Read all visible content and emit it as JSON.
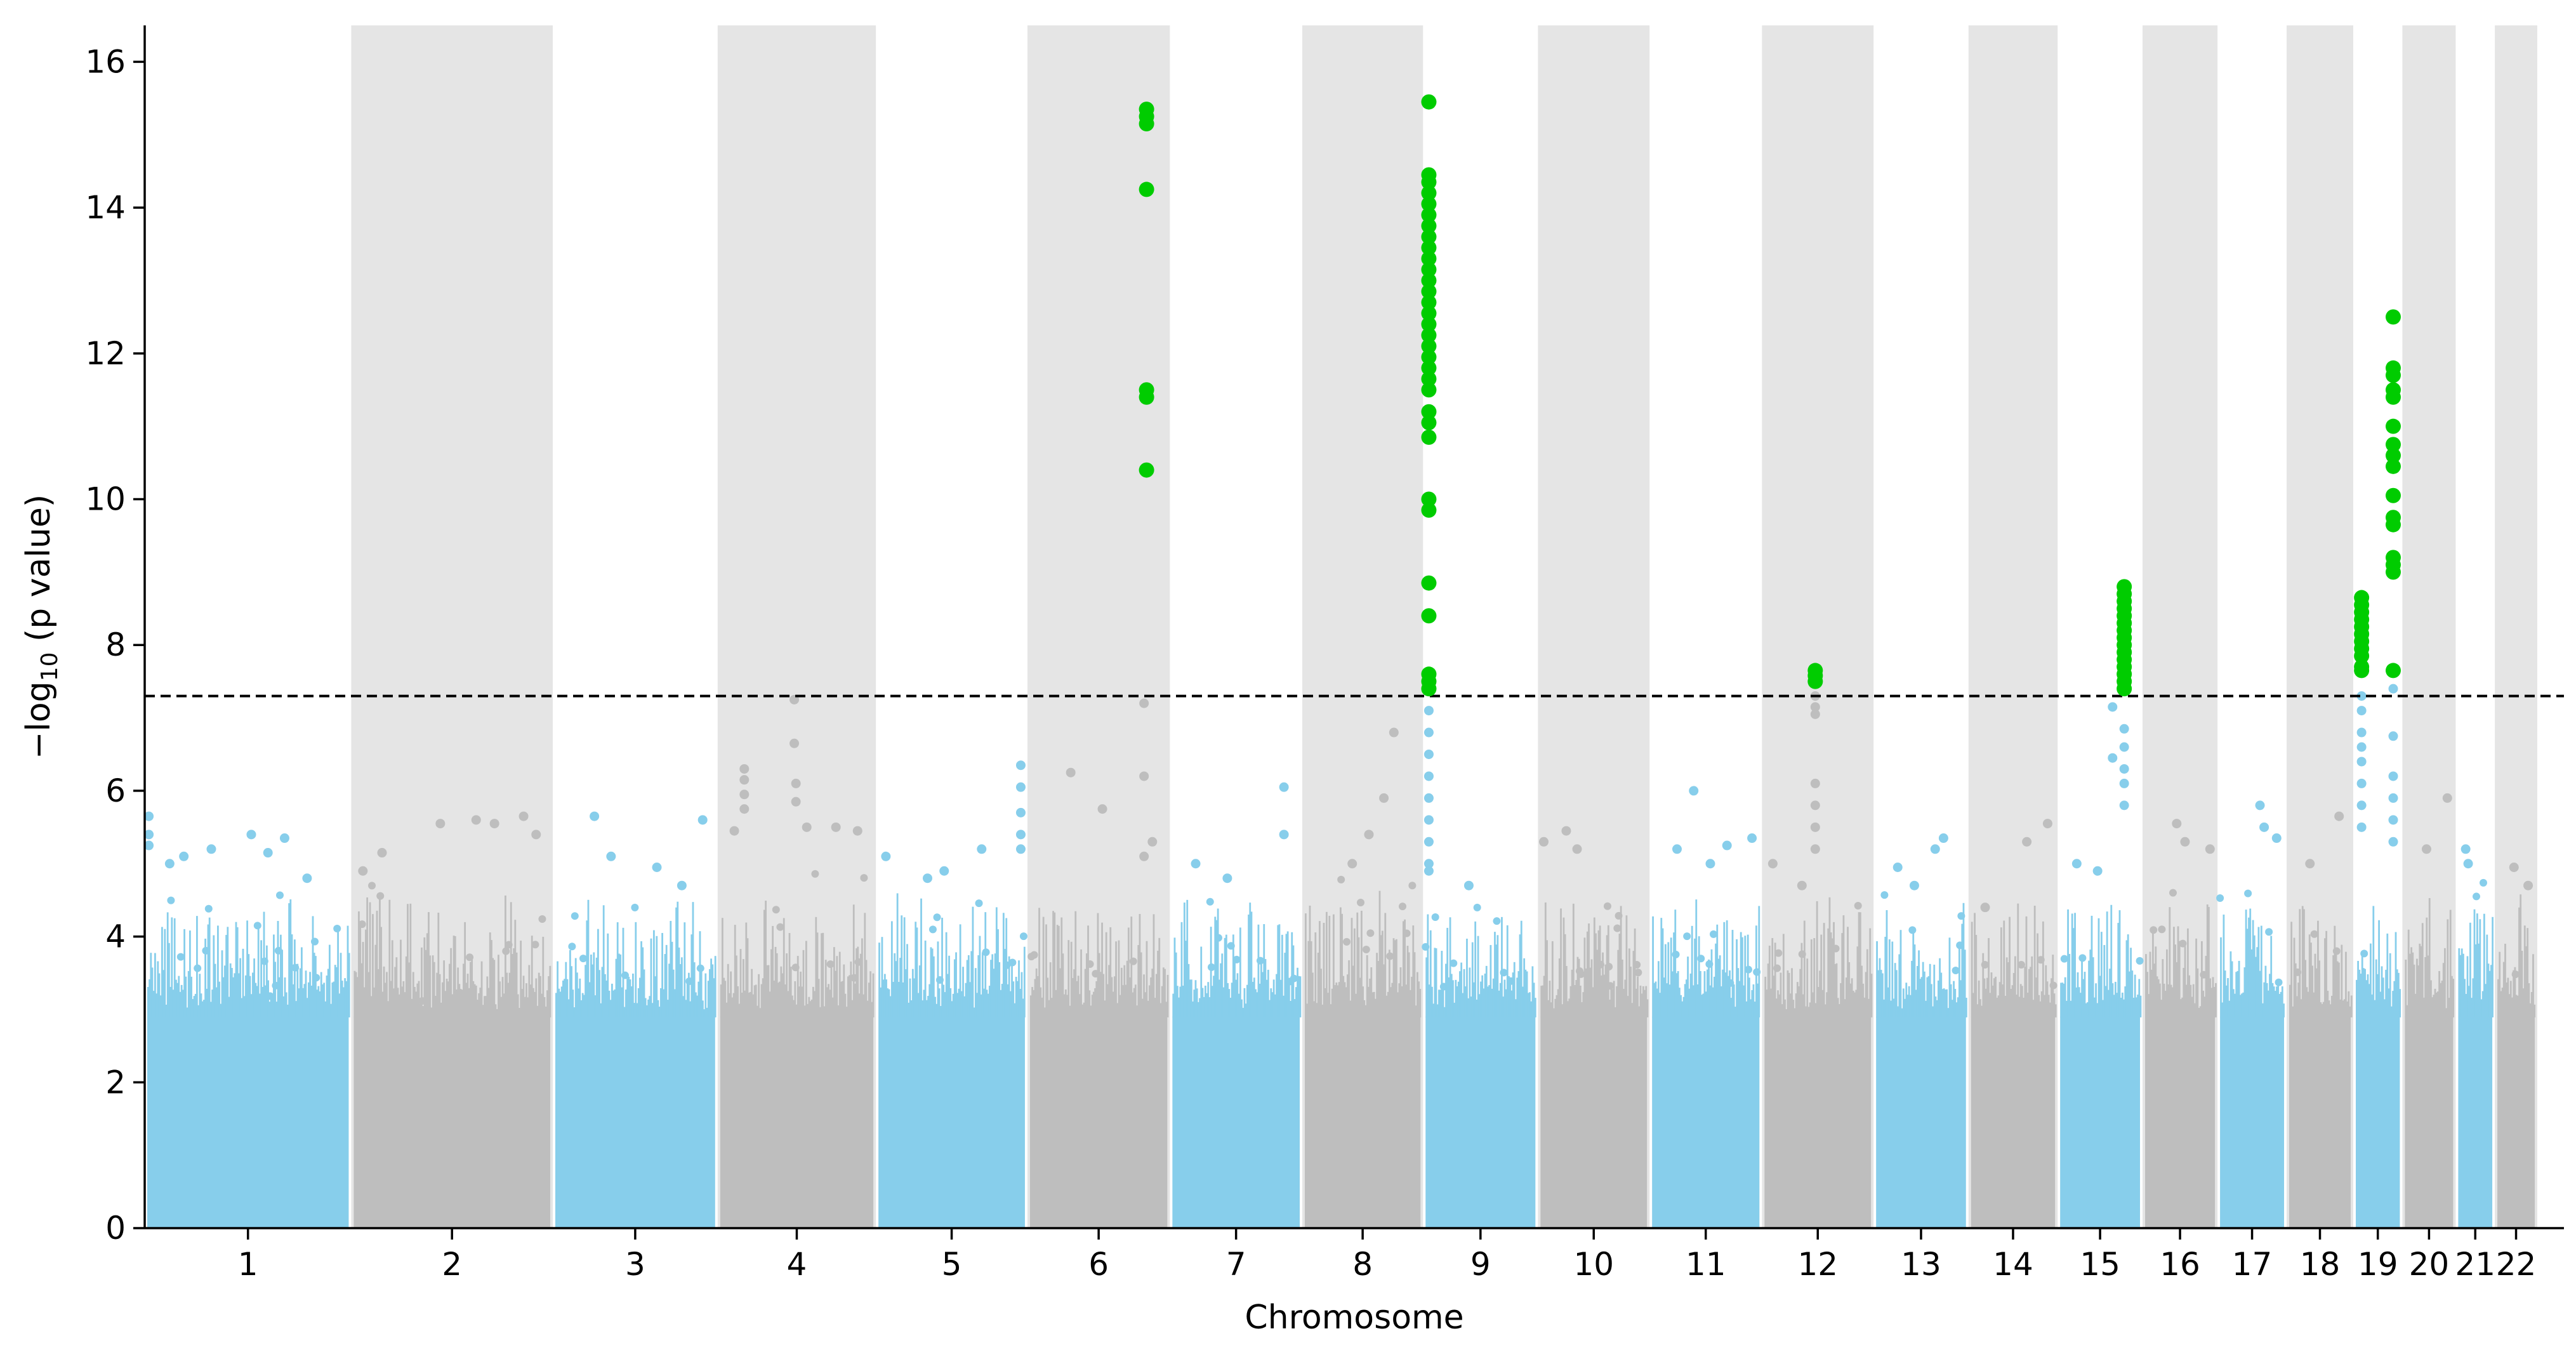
{
  "chart_data": {
    "type": "scatter",
    "title": "",
    "xlabel": "Chromosome",
    "ylabel": "−log",
    "ylabel_sub": "10",
    "ylabel_suffix": " (p value)",
    "ylim": [
      0,
      16.5
    ],
    "yticks": [
      0,
      2,
      4,
      6,
      8,
      10,
      12,
      14,
      16
    ],
    "grid": false,
    "legend": "none",
    "significance_threshold": 7.3,
    "colors": {
      "odd": "#87ceeb",
      "even": "#bebebe",
      "band": "#e5e5e5",
      "significant": "#00cc00",
      "threshold": "#000000"
    },
    "x_domain": [
      0,
      2905
    ],
    "chromosomes": [
      {
        "label": "1",
        "start": 0,
        "end": 248
      },
      {
        "label": "2",
        "start": 248,
        "end": 490
      },
      {
        "label": "3",
        "start": 490,
        "end": 688
      },
      {
        "label": "4",
        "start": 688,
        "end": 878
      },
      {
        "label": "5",
        "start": 878,
        "end": 1060
      },
      {
        "label": "6",
        "start": 1060,
        "end": 1231
      },
      {
        "label": "7",
        "start": 1231,
        "end": 1390
      },
      {
        "label": "8",
        "start": 1390,
        "end": 1535
      },
      {
        "label": "9",
        "start": 1535,
        "end": 1673
      },
      {
        "label": "10",
        "start": 1673,
        "end": 1807
      },
      {
        "label": "11",
        "start": 1807,
        "end": 1942
      },
      {
        "label": "12",
        "start": 1942,
        "end": 2076
      },
      {
        "label": "13",
        "start": 2076,
        "end": 2190
      },
      {
        "label": "14",
        "start": 2190,
        "end": 2297
      },
      {
        "label": "15",
        "start": 2297,
        "end": 2399
      },
      {
        "label": "16",
        "start": 2399,
        "end": 2489
      },
      {
        "label": "17",
        "start": 2489,
        "end": 2572
      },
      {
        "label": "18",
        "start": 2572,
        "end": 2652
      },
      {
        "label": "19",
        "start": 2652,
        "end": 2711
      },
      {
        "label": "20",
        "start": 2711,
        "end": 2775
      },
      {
        "label": "21",
        "start": 2775,
        "end": 2822
      },
      {
        "label": "22",
        "start": 2822,
        "end": 2873
      }
    ],
    "series": [
      {
        "role": "significant",
        "points": [
          {
            "x": 1203,
            "y": 15.35
          },
          {
            "x": 1203,
            "y": 15.25
          },
          {
            "x": 1203,
            "y": 15.15
          },
          {
            "x": 1203,
            "y": 14.25
          },
          {
            "x": 1203,
            "y": 11.5
          },
          {
            "x": 1203,
            "y": 11.4
          },
          {
            "x": 1203,
            "y": 10.4
          },
          {
            "x": 1542,
            "y": 15.45
          },
          {
            "x": 1542,
            "y": 14.45
          },
          {
            "x": 1542,
            "y": 14.35
          },
          {
            "x": 1542,
            "y": 14.2
          },
          {
            "x": 1542,
            "y": 14.05
          },
          {
            "x": 1542,
            "y": 13.9
          },
          {
            "x": 1542,
            "y": 13.75
          },
          {
            "x": 1542,
            "y": 13.6
          },
          {
            "x": 1542,
            "y": 13.45
          },
          {
            "x": 1542,
            "y": 13.3
          },
          {
            "x": 1542,
            "y": 13.15
          },
          {
            "x": 1542,
            "y": 13.0
          },
          {
            "x": 1542,
            "y": 12.85
          },
          {
            "x": 1542,
            "y": 12.7
          },
          {
            "x": 1542,
            "y": 12.55
          },
          {
            "x": 1542,
            "y": 12.4
          },
          {
            "x": 1542,
            "y": 12.25
          },
          {
            "x": 1542,
            "y": 12.1
          },
          {
            "x": 1542,
            "y": 11.95
          },
          {
            "x": 1542,
            "y": 11.8
          },
          {
            "x": 1542,
            "y": 11.65
          },
          {
            "x": 1542,
            "y": 11.5
          },
          {
            "x": 1542,
            "y": 11.2
          },
          {
            "x": 1542,
            "y": 11.05
          },
          {
            "x": 1542,
            "y": 10.85
          },
          {
            "x": 1542,
            "y": 10.0
          },
          {
            "x": 1542,
            "y": 9.85
          },
          {
            "x": 1542,
            "y": 8.85
          },
          {
            "x": 1542,
            "y": 8.4
          },
          {
            "x": 1542,
            "y": 7.6
          },
          {
            "x": 1542,
            "y": 7.5
          },
          {
            "x": 1542,
            "y": 7.4
          },
          {
            "x": 2006,
            "y": 7.65
          },
          {
            "x": 2006,
            "y": 7.58
          },
          {
            "x": 2006,
            "y": 7.5
          },
          {
            "x": 2377,
            "y": 8.8
          },
          {
            "x": 2377,
            "y": 8.7
          },
          {
            "x": 2377,
            "y": 8.6
          },
          {
            "x": 2377,
            "y": 8.5
          },
          {
            "x": 2377,
            "y": 8.4
          },
          {
            "x": 2377,
            "y": 8.3
          },
          {
            "x": 2377,
            "y": 8.2
          },
          {
            "x": 2377,
            "y": 8.1
          },
          {
            "x": 2377,
            "y": 8.0
          },
          {
            "x": 2377,
            "y": 7.9
          },
          {
            "x": 2377,
            "y": 7.8
          },
          {
            "x": 2377,
            "y": 7.7
          },
          {
            "x": 2377,
            "y": 7.6
          },
          {
            "x": 2377,
            "y": 7.5
          },
          {
            "x": 2377,
            "y": 7.4
          },
          {
            "x": 2662,
            "y": 8.65
          },
          {
            "x": 2662,
            "y": 8.55
          },
          {
            "x": 2662,
            "y": 8.45
          },
          {
            "x": 2662,
            "y": 8.35
          },
          {
            "x": 2662,
            "y": 8.25
          },
          {
            "x": 2662,
            "y": 8.15
          },
          {
            "x": 2662,
            "y": 8.05
          },
          {
            "x": 2662,
            "y": 7.95
          },
          {
            "x": 2662,
            "y": 7.85
          },
          {
            "x": 2662,
            "y": 7.7
          },
          {
            "x": 2662,
            "y": 7.65
          },
          {
            "x": 2700,
            "y": 12.5
          },
          {
            "x": 2700,
            "y": 11.8
          },
          {
            "x": 2700,
            "y": 11.7
          },
          {
            "x": 2700,
            "y": 11.5
          },
          {
            "x": 2700,
            "y": 11.4
          },
          {
            "x": 2700,
            "y": 11.0
          },
          {
            "x": 2700,
            "y": 10.75
          },
          {
            "x": 2700,
            "y": 10.6
          },
          {
            "x": 2700,
            "y": 10.45
          },
          {
            "x": 2700,
            "y": 10.05
          },
          {
            "x": 2700,
            "y": 9.75
          },
          {
            "x": 2700,
            "y": 9.65
          },
          {
            "x": 2700,
            "y": 9.2
          },
          {
            "x": 2700,
            "y": 9.1
          },
          {
            "x": 2700,
            "y": 9.0
          },
          {
            "x": 2700,
            "y": 7.65
          }
        ]
      },
      {
        "role": "peaks",
        "points": [
          {
            "x": 5,
            "y": 5.65
          },
          {
            "x": 5,
            "y": 5.4
          },
          {
            "x": 5,
            "y": 5.25
          },
          {
            "x": 30,
            "y": 5.0
          },
          {
            "x": 47,
            "y": 5.1
          },
          {
            "x": 80,
            "y": 5.2
          },
          {
            "x": 128,
            "y": 5.4
          },
          {
            "x": 148,
            "y": 5.15
          },
          {
            "x": 168,
            "y": 5.35
          },
          {
            "x": 195,
            "y": 4.8
          },
          {
            "x": 262,
            "y": 4.9
          },
          {
            "x": 285,
            "y": 5.15
          },
          {
            "x": 355,
            "y": 5.55
          },
          {
            "x": 398,
            "y": 5.6
          },
          {
            "x": 420,
            "y": 5.55
          },
          {
            "x": 455,
            "y": 5.65
          },
          {
            "x": 470,
            "y": 5.4
          },
          {
            "x": 540,
            "y": 5.65
          },
          {
            "x": 560,
            "y": 5.1
          },
          {
            "x": 615,
            "y": 4.95
          },
          {
            "x": 645,
            "y": 4.7
          },
          {
            "x": 670,
            "y": 5.6
          },
          {
            "x": 708,
            "y": 5.45
          },
          {
            "x": 720,
            "y": 6.3
          },
          {
            "x": 720,
            "y": 6.15
          },
          {
            "x": 720,
            "y": 5.95
          },
          {
            "x": 720,
            "y": 5.75
          },
          {
            "x": 780,
            "y": 7.25
          },
          {
            "x": 780,
            "y": 6.65
          },
          {
            "x": 782,
            "y": 6.1
          },
          {
            "x": 782,
            "y": 5.85
          },
          {
            "x": 795,
            "y": 5.5
          },
          {
            "x": 830,
            "y": 5.5
          },
          {
            "x": 856,
            "y": 5.45
          },
          {
            "x": 890,
            "y": 5.1
          },
          {
            "x": 940,
            "y": 4.8
          },
          {
            "x": 960,
            "y": 4.9
          },
          {
            "x": 1005,
            "y": 5.2
          },
          {
            "x": 1052,
            "y": 6.35
          },
          {
            "x": 1052,
            "y": 6.05
          },
          {
            "x": 1052,
            "y": 5.7
          },
          {
            "x": 1052,
            "y": 5.4
          },
          {
            "x": 1052,
            "y": 5.2
          },
          {
            "x": 1112,
            "y": 6.25
          },
          {
            "x": 1150,
            "y": 5.75
          },
          {
            "x": 1200,
            "y": 7.2
          },
          {
            "x": 1200,
            "y": 6.2
          },
          {
            "x": 1200,
            "y": 5.1
          },
          {
            "x": 1210,
            "y": 5.3
          },
          {
            "x": 1262,
            "y": 5.0
          },
          {
            "x": 1300,
            "y": 4.8
          },
          {
            "x": 1368,
            "y": 6.05
          },
          {
            "x": 1368,
            "y": 5.4
          },
          {
            "x": 1450,
            "y": 5.0
          },
          {
            "x": 1470,
            "y": 5.4
          },
          {
            "x": 1488,
            "y": 5.9
          },
          {
            "x": 1500,
            "y": 6.8
          },
          {
            "x": 1542,
            "y": 7.1
          },
          {
            "x": 1542,
            "y": 6.8
          },
          {
            "x": 1542,
            "y": 6.5
          },
          {
            "x": 1542,
            "y": 6.2
          },
          {
            "x": 1542,
            "y": 5.9
          },
          {
            "x": 1542,
            "y": 5.6
          },
          {
            "x": 1542,
            "y": 5.3
          },
          {
            "x": 1542,
            "y": 5.0
          },
          {
            "x": 1542,
            "y": 4.9
          },
          {
            "x": 1590,
            "y": 4.7
          },
          {
            "x": 1680,
            "y": 5.3
          },
          {
            "x": 1707,
            "y": 5.45
          },
          {
            "x": 1720,
            "y": 5.2
          },
          {
            "x": 1840,
            "y": 5.2
          },
          {
            "x": 1860,
            "y": 6.0
          },
          {
            "x": 1880,
            "y": 5.0
          },
          {
            "x": 1900,
            "y": 5.25
          },
          {
            "x": 1930,
            "y": 5.35
          },
          {
            "x": 1955,
            "y": 5.0
          },
          {
            "x": 1990,
            "y": 4.7
          },
          {
            "x": 2006,
            "y": 7.3
          },
          {
            "x": 2006,
            "y": 7.15
          },
          {
            "x": 2006,
            "y": 7.05
          },
          {
            "x": 2006,
            "y": 6.1
          },
          {
            "x": 2006,
            "y": 5.8
          },
          {
            "x": 2006,
            "y": 5.5
          },
          {
            "x": 2006,
            "y": 5.2
          },
          {
            "x": 2105,
            "y": 4.95
          },
          {
            "x": 2125,
            "y": 4.7
          },
          {
            "x": 2150,
            "y": 5.2
          },
          {
            "x": 2160,
            "y": 5.35
          },
          {
            "x": 2210,
            "y": 4.4
          },
          {
            "x": 2260,
            "y": 5.3
          },
          {
            "x": 2285,
            "y": 5.55
          },
          {
            "x": 2320,
            "y": 5.0
          },
          {
            "x": 2345,
            "y": 4.9
          },
          {
            "x": 2363,
            "y": 7.15
          },
          {
            "x": 2363,
            "y": 6.45
          },
          {
            "x": 2377,
            "y": 6.85
          },
          {
            "x": 2377,
            "y": 6.6
          },
          {
            "x": 2377,
            "y": 6.3
          },
          {
            "x": 2377,
            "y": 6.1
          },
          {
            "x": 2377,
            "y": 5.8
          },
          {
            "x": 2440,
            "y": 5.55
          },
          {
            "x": 2450,
            "y": 5.3
          },
          {
            "x": 2480,
            "y": 5.2
          },
          {
            "x": 2540,
            "y": 5.8
          },
          {
            "x": 2545,
            "y": 5.5
          },
          {
            "x": 2560,
            "y": 5.35
          },
          {
            "x": 2600,
            "y": 5.0
          },
          {
            "x": 2635,
            "y": 5.65
          },
          {
            "x": 2662,
            "y": 7.3
          },
          {
            "x": 2662,
            "y": 7.1
          },
          {
            "x": 2662,
            "y": 6.8
          },
          {
            "x": 2662,
            "y": 6.6
          },
          {
            "x": 2662,
            "y": 6.4
          },
          {
            "x": 2662,
            "y": 6.1
          },
          {
            "x": 2662,
            "y": 5.8
          },
          {
            "x": 2662,
            "y": 5.5
          },
          {
            "x": 2700,
            "y": 7.4
          },
          {
            "x": 2700,
            "y": 6.75
          },
          {
            "x": 2700,
            "y": 6.2
          },
          {
            "x": 2700,
            "y": 5.9
          },
          {
            "x": 2700,
            "y": 5.6
          },
          {
            "x": 2700,
            "y": 5.3
          },
          {
            "x": 2740,
            "y": 5.2
          },
          {
            "x": 2765,
            "y": 5.9
          },
          {
            "x": 2787,
            "y": 5.2
          },
          {
            "x": 2790,
            "y": 5.0
          },
          {
            "x": 2845,
            "y": 4.95
          },
          {
            "x": 2862,
            "y": 4.7
          }
        ]
      }
    ]
  }
}
